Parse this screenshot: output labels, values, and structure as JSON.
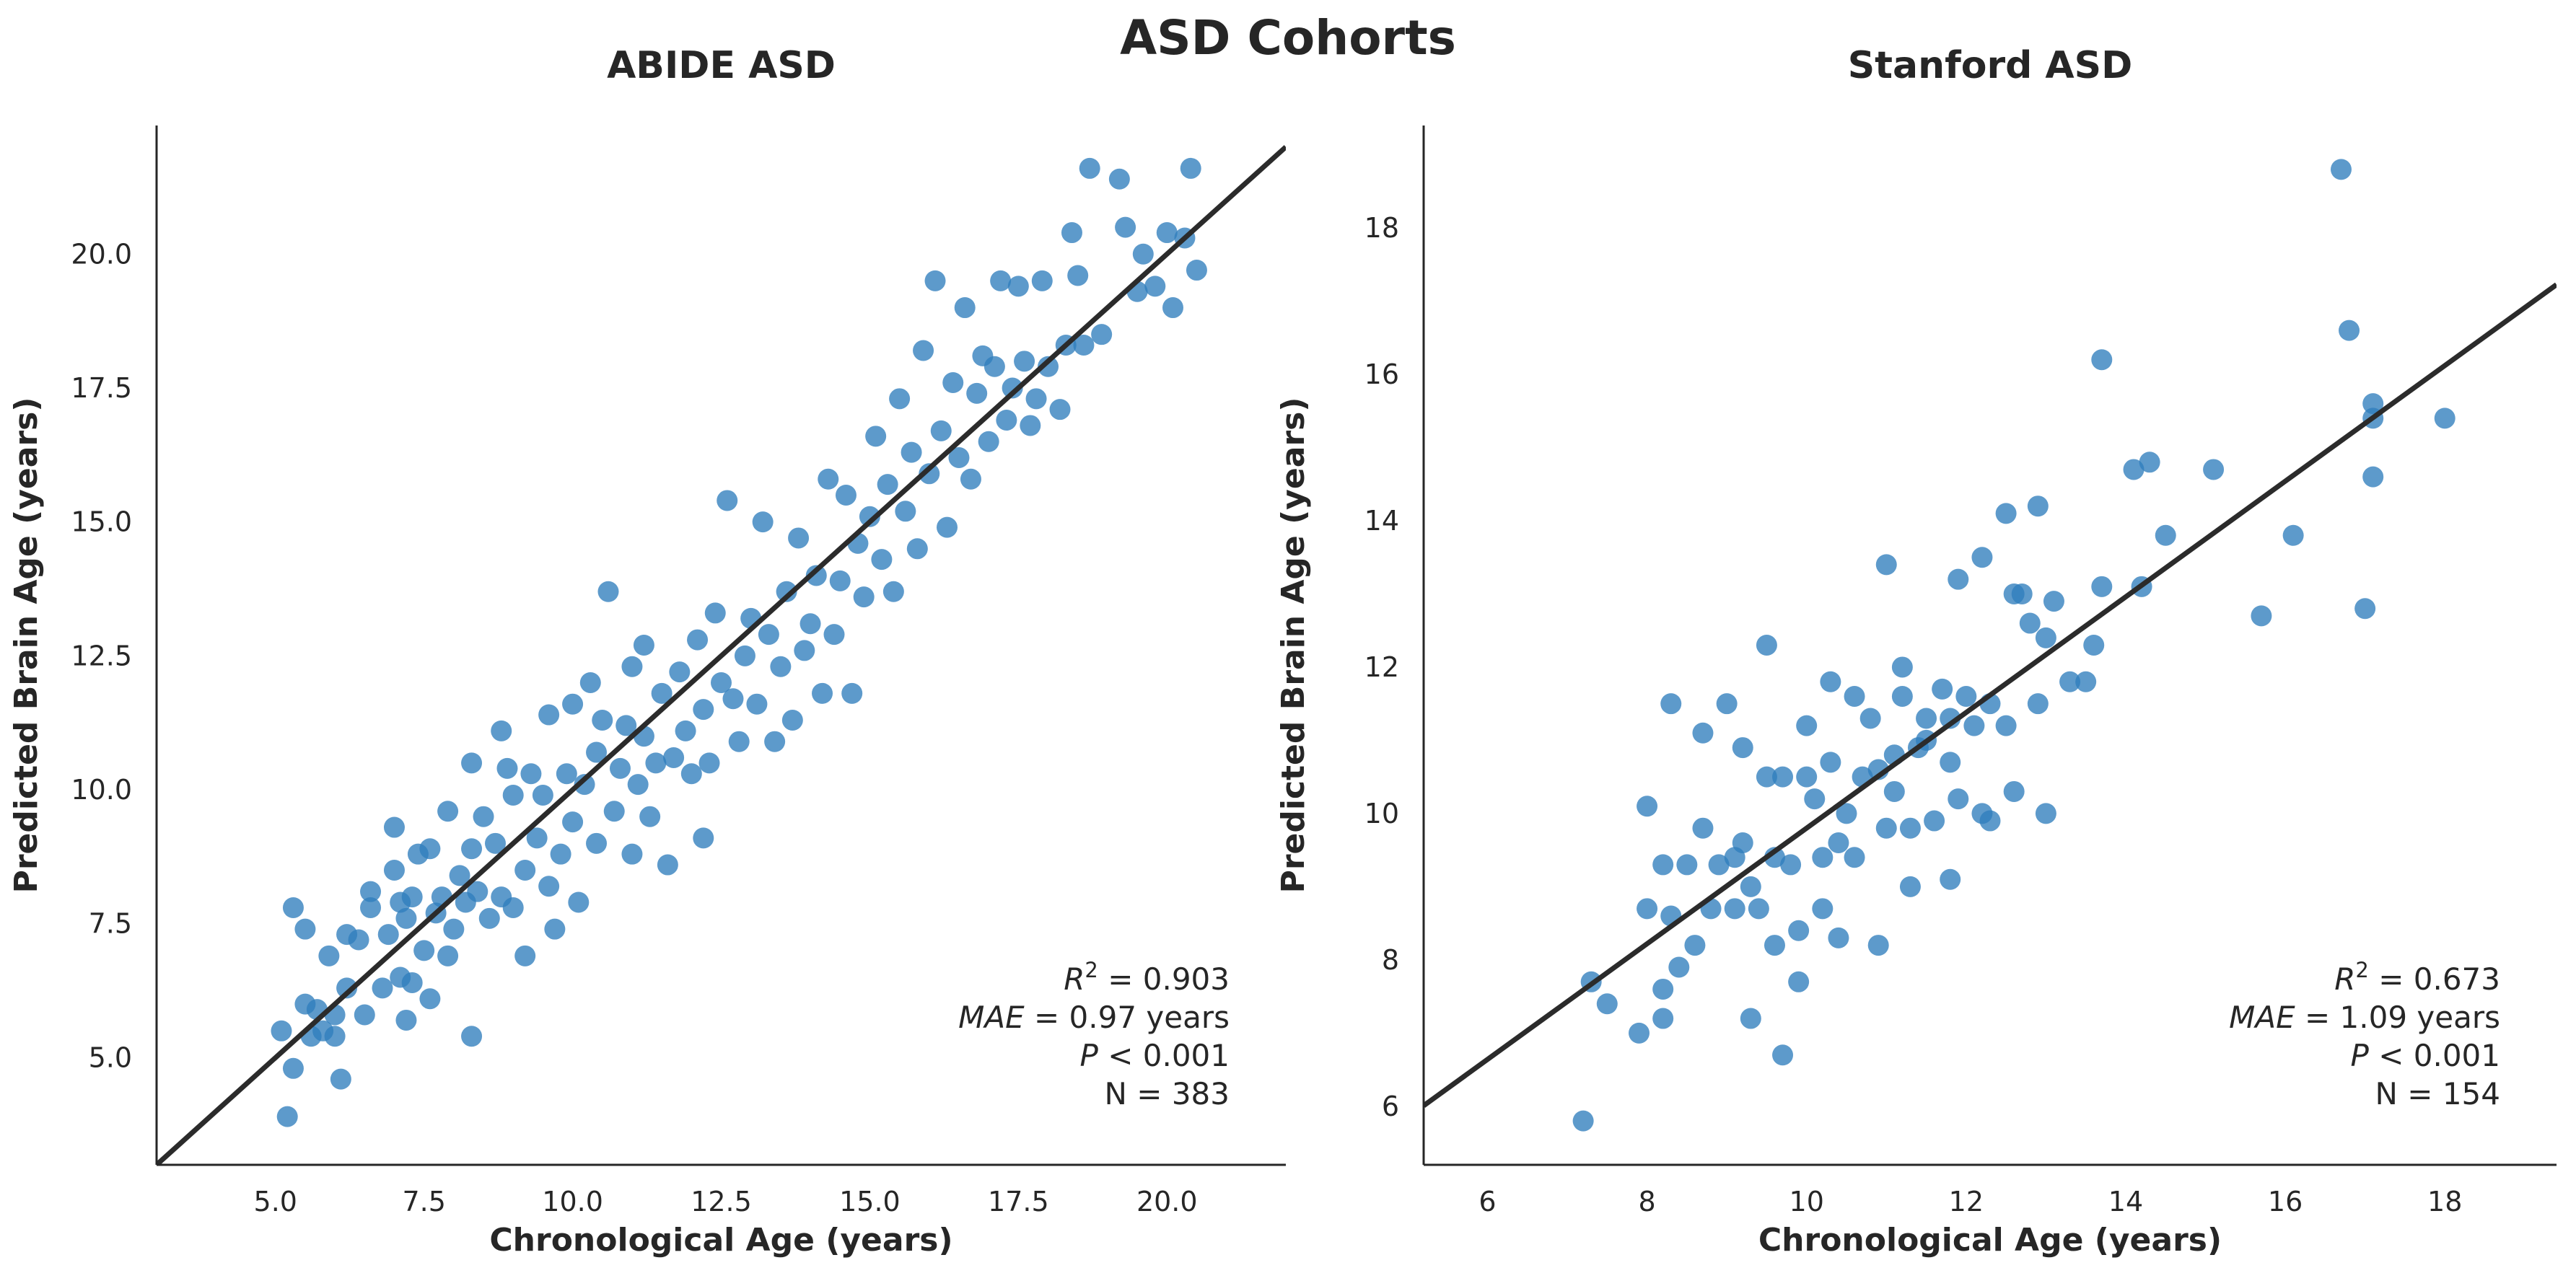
{
  "figure": {
    "suptitle": "ASD Cohorts"
  },
  "colors": {
    "points": "#2f7ebc",
    "fit_line": "#2b2b2b",
    "axes": "#262626",
    "background": "#ffffff"
  },
  "chart_data": [
    {
      "type": "scatter",
      "title": "ABIDE ASD",
      "xlabel": "Chronological Age (years)",
      "ylabel": "Predicted Brain Age (years)",
      "xlim": [
        3.0,
        22.0
      ],
      "ylim": [
        3.0,
        22.4
      ],
      "xticks": [
        5.0,
        7.5,
        10.0,
        12.5,
        15.0,
        17.5,
        20.0
      ],
      "yticks": [
        5.0,
        7.5,
        10.0,
        12.5,
        15.0,
        17.5,
        20.0
      ],
      "tick_decimals": 1,
      "grid": false,
      "fit_line": {
        "slope": 1.0,
        "intercept": 0.0
      },
      "stats": {
        "r2": "0.903",
        "mae": "0.97 years",
        "p": "0.001",
        "n": "N = 383"
      },
      "stats_labels": {
        "r2_var": "R",
        "r2_sup": "2",
        "mae_var": "MAE",
        "p_var": "P",
        "eq": "=",
        "lt": "<"
      },
      "n_points": 383,
      "points_note": "representative subset of points",
      "points": [
        [
          5.1,
          5.5
        ],
        [
          5.2,
          3.9
        ],
        [
          5.3,
          4.8
        ],
        [
          5.3,
          7.8
        ],
        [
          5.5,
          6.0
        ],
        [
          5.5,
          7.4
        ],
        [
          5.6,
          5.4
        ],
        [
          5.7,
          5.9
        ],
        [
          5.8,
          5.5
        ],
        [
          5.9,
          6.9
        ],
        [
          6.0,
          5.4
        ],
        [
          6.0,
          5.8
        ],
        [
          6.1,
          4.6
        ],
        [
          6.2,
          6.3
        ],
        [
          6.2,
          7.3
        ],
        [
          6.4,
          7.2
        ],
        [
          6.5,
          5.8
        ],
        [
          6.6,
          7.8
        ],
        [
          6.6,
          8.1
        ],
        [
          6.8,
          6.3
        ],
        [
          6.9,
          7.3
        ],
        [
          7.0,
          8.5
        ],
        [
          7.0,
          9.3
        ],
        [
          7.1,
          6.5
        ],
        [
          7.1,
          7.9
        ],
        [
          7.2,
          5.7
        ],
        [
          7.2,
          7.6
        ],
        [
          7.3,
          6.4
        ],
        [
          7.3,
          8.0
        ],
        [
          7.4,
          8.8
        ],
        [
          7.5,
          7.0
        ],
        [
          7.6,
          6.1
        ],
        [
          7.6,
          8.9
        ],
        [
          7.7,
          7.7
        ],
        [
          7.8,
          8.0
        ],
        [
          7.9,
          6.9
        ],
        [
          7.9,
          9.6
        ],
        [
          8.0,
          7.4
        ],
        [
          8.1,
          8.4
        ],
        [
          8.2,
          7.9
        ],
        [
          8.3,
          5.4
        ],
        [
          8.3,
          8.9
        ],
        [
          8.3,
          10.5
        ],
        [
          8.4,
          8.1
        ],
        [
          8.5,
          9.5
        ],
        [
          8.6,
          7.6
        ],
        [
          8.7,
          9.0
        ],
        [
          8.8,
          8.0
        ],
        [
          8.8,
          11.1
        ],
        [
          8.9,
          10.4
        ],
        [
          9.0,
          7.8
        ],
        [
          9.0,
          9.9
        ],
        [
          9.2,
          6.9
        ],
        [
          9.2,
          8.5
        ],
        [
          9.3,
          10.3
        ],
        [
          9.4,
          9.1
        ],
        [
          9.5,
          9.9
        ],
        [
          9.6,
          8.2
        ],
        [
          9.6,
          11.4
        ],
        [
          9.7,
          7.4
        ],
        [
          9.8,
          8.8
        ],
        [
          9.9,
          10.3
        ],
        [
          10.0,
          9.4
        ],
        [
          10.0,
          11.6
        ],
        [
          10.1,
          7.9
        ],
        [
          10.2,
          10.1
        ],
        [
          10.3,
          12.0
        ],
        [
          10.4,
          9.0
        ],
        [
          10.4,
          10.7
        ],
        [
          10.5,
          11.3
        ],
        [
          10.6,
          13.7
        ],
        [
          10.7,
          9.6
        ],
        [
          10.8,
          10.4
        ],
        [
          10.9,
          11.2
        ],
        [
          11.0,
          8.8
        ],
        [
          11.0,
          12.3
        ],
        [
          11.1,
          10.1
        ],
        [
          11.2,
          11.0
        ],
        [
          11.2,
          12.7
        ],
        [
          11.3,
          9.5
        ],
        [
          11.4,
          10.5
        ],
        [
          11.5,
          11.8
        ],
        [
          11.6,
          8.6
        ],
        [
          11.7,
          10.6
        ],
        [
          11.8,
          12.2
        ],
        [
          11.9,
          11.1
        ],
        [
          12.0,
          10.3
        ],
        [
          12.1,
          12.8
        ],
        [
          12.2,
          9.1
        ],
        [
          12.2,
          11.5
        ],
        [
          12.3,
          10.5
        ],
        [
          12.4,
          13.3
        ],
        [
          12.5,
          12.0
        ],
        [
          12.6,
          15.4
        ],
        [
          12.7,
          11.7
        ],
        [
          12.8,
          10.9
        ],
        [
          12.9,
          12.5
        ],
        [
          13.0,
          13.2
        ],
        [
          13.1,
          11.6
        ],
        [
          13.2,
          15.0
        ],
        [
          13.3,
          12.9
        ],
        [
          13.4,
          10.9
        ],
        [
          13.5,
          12.3
        ],
        [
          13.6,
          13.7
        ],
        [
          13.7,
          11.3
        ],
        [
          13.8,
          14.7
        ],
        [
          13.9,
          12.6
        ],
        [
          14.0,
          13.1
        ],
        [
          14.1,
          14.0
        ],
        [
          14.2,
          11.8
        ],
        [
          14.3,
          15.8
        ],
        [
          14.4,
          12.9
        ],
        [
          14.5,
          13.9
        ],
        [
          14.6,
          15.5
        ],
        [
          14.7,
          11.8
        ],
        [
          14.8,
          14.6
        ],
        [
          14.9,
          13.6
        ],
        [
          15.0,
          15.1
        ],
        [
          15.1,
          16.6
        ],
        [
          15.2,
          14.3
        ],
        [
          15.3,
          15.7
        ],
        [
          15.4,
          13.7
        ],
        [
          15.5,
          17.3
        ],
        [
          15.6,
          15.2
        ],
        [
          15.7,
          16.3
        ],
        [
          15.8,
          14.5
        ],
        [
          15.9,
          18.2
        ],
        [
          16.0,
          15.9
        ],
        [
          16.1,
          19.5
        ],
        [
          16.2,
          16.7
        ],
        [
          16.3,
          14.9
        ],
        [
          16.4,
          17.6
        ],
        [
          16.5,
          16.2
        ],
        [
          16.6,
          19.0
        ],
        [
          16.7,
          15.8
        ],
        [
          16.8,
          17.4
        ],
        [
          16.9,
          18.1
        ],
        [
          17.0,
          16.5
        ],
        [
          17.1,
          17.9
        ],
        [
          17.2,
          19.5
        ],
        [
          17.3,
          16.9
        ],
        [
          17.4,
          17.5
        ],
        [
          17.5,
          19.4
        ],
        [
          17.6,
          18.0
        ],
        [
          17.7,
          16.8
        ],
        [
          17.8,
          17.3
        ],
        [
          17.9,
          19.5
        ],
        [
          18.0,
          17.9
        ],
        [
          18.2,
          17.1
        ],
        [
          18.3,
          18.3
        ],
        [
          18.4,
          20.4
        ],
        [
          18.5,
          19.6
        ],
        [
          18.6,
          18.3
        ],
        [
          18.7,
          21.6
        ],
        [
          18.9,
          18.5
        ],
        [
          19.2,
          21.4
        ],
        [
          19.3,
          20.5
        ],
        [
          19.5,
          19.3
        ],
        [
          19.6,
          20.0
        ],
        [
          19.8,
          19.4
        ],
        [
          20.0,
          20.4
        ],
        [
          20.1,
          19.0
        ],
        [
          20.3,
          20.3
        ],
        [
          20.4,
          21.6
        ],
        [
          20.5,
          19.7
        ]
      ]
    },
    {
      "type": "scatter",
      "title": "Stanford ASD",
      "xlabel": "Chronological Age (years)",
      "ylabel": "Predicted Brain Age (years)",
      "xlim": [
        5.2,
        19.4
      ],
      "ylim": [
        5.2,
        19.4
      ],
      "xticks": [
        6,
        8,
        10,
        12,
        14,
        16,
        18
      ],
      "yticks": [
        6,
        8,
        10,
        12,
        14,
        16,
        18
      ],
      "tick_decimals": 0,
      "grid": false,
      "fit_line": {
        "slope": 0.79,
        "intercept": 1.9
      },
      "stats": {
        "r2": "0.673",
        "mae": "1.09 years",
        "p": "0.001",
        "n": "N = 154"
      },
      "stats_labels": {
        "r2_var": "R",
        "r2_sup": "2",
        "mae_var": "MAE",
        "p_var": "P",
        "eq": "=",
        "lt": "<"
      },
      "n_points": 154,
      "points_note": "representative subset of points",
      "points": [
        [
          7.2,
          5.8
        ],
        [
          7.3,
          7.7
        ],
        [
          7.5,
          7.4
        ],
        [
          7.9,
          7.0
        ],
        [
          8.0,
          8.7
        ],
        [
          8.0,
          10.1
        ],
        [
          8.2,
          7.2
        ],
        [
          8.2,
          7.6
        ],
        [
          8.2,
          9.3
        ],
        [
          8.3,
          8.6
        ],
        [
          8.3,
          11.5
        ],
        [
          8.4,
          7.9
        ],
        [
          8.5,
          9.3
        ],
        [
          8.6,
          8.2
        ],
        [
          8.7,
          11.1
        ],
        [
          8.7,
          9.8
        ],
        [
          8.8,
          8.7
        ],
        [
          8.9,
          9.3
        ],
        [
          9.0,
          11.5
        ],
        [
          9.1,
          8.7
        ],
        [
          9.1,
          9.4
        ],
        [
          9.2,
          9.6
        ],
        [
          9.2,
          10.9
        ],
        [
          9.3,
          9.0
        ],
        [
          9.3,
          7.2
        ],
        [
          9.4,
          8.7
        ],
        [
          9.5,
          10.5
        ],
        [
          9.5,
          12.3
        ],
        [
          9.6,
          9.4
        ],
        [
          9.6,
          8.2
        ],
        [
          9.7,
          6.7
        ],
        [
          9.7,
          10.5
        ],
        [
          9.8,
          9.3
        ],
        [
          9.9,
          7.7
        ],
        [
          9.9,
          8.4
        ],
        [
          10.0,
          11.2
        ],
        [
          10.0,
          10.5
        ],
        [
          10.1,
          10.2
        ],
        [
          10.2,
          9.4
        ],
        [
          10.2,
          8.7
        ],
        [
          10.3,
          10.7
        ],
        [
          10.3,
          11.8
        ],
        [
          10.4,
          9.6
        ],
        [
          10.4,
          8.3
        ],
        [
          10.5,
          10.0
        ],
        [
          10.6,
          11.6
        ],
        [
          10.6,
          9.4
        ],
        [
          10.7,
          10.5
        ],
        [
          10.8,
          11.3
        ],
        [
          10.9,
          8.2
        ],
        [
          10.9,
          10.6
        ],
        [
          11.0,
          13.4
        ],
        [
          11.0,
          9.8
        ],
        [
          11.1,
          10.3
        ],
        [
          11.1,
          10.8
        ],
        [
          11.2,
          12.0
        ],
        [
          11.2,
          11.6
        ],
        [
          11.3,
          9.0
        ],
        [
          11.3,
          9.8
        ],
        [
          11.4,
          10.9
        ],
        [
          11.5,
          11.3
        ],
        [
          11.5,
          11.0
        ],
        [
          11.6,
          9.9
        ],
        [
          11.7,
          11.7
        ],
        [
          11.8,
          10.7
        ],
        [
          11.8,
          9.1
        ],
        [
          11.8,
          11.3
        ],
        [
          11.9,
          13.2
        ],
        [
          11.9,
          10.2
        ],
        [
          12.0,
          11.6
        ],
        [
          12.1,
          11.2
        ],
        [
          12.2,
          10.0
        ],
        [
          12.2,
          13.5
        ],
        [
          12.3,
          11.5
        ],
        [
          12.3,
          9.9
        ],
        [
          12.5,
          11.2
        ],
        [
          12.5,
          14.1
        ],
        [
          12.6,
          13.0
        ],
        [
          12.6,
          10.3
        ],
        [
          12.7,
          13.0
        ],
        [
          12.8,
          12.6
        ],
        [
          12.9,
          14.2
        ],
        [
          12.9,
          11.5
        ],
        [
          13.0,
          12.4
        ],
        [
          13.0,
          10.0
        ],
        [
          13.1,
          12.9
        ],
        [
          13.3,
          11.8
        ],
        [
          13.5,
          11.8
        ],
        [
          13.6,
          12.3
        ],
        [
          13.7,
          16.2
        ],
        [
          13.7,
          13.1
        ],
        [
          14.1,
          14.7
        ],
        [
          14.2,
          13.1
        ],
        [
          14.3,
          14.8
        ],
        [
          14.5,
          13.8
        ],
        [
          15.1,
          14.7
        ],
        [
          15.7,
          12.7
        ],
        [
          16.1,
          13.8
        ],
        [
          16.7,
          18.8
        ],
        [
          16.8,
          16.6
        ],
        [
          17.0,
          12.8
        ],
        [
          17.1,
          15.6
        ],
        [
          17.1,
          15.4
        ],
        [
          17.1,
          14.6
        ],
        [
          18.0,
          15.4
        ]
      ]
    }
  ]
}
